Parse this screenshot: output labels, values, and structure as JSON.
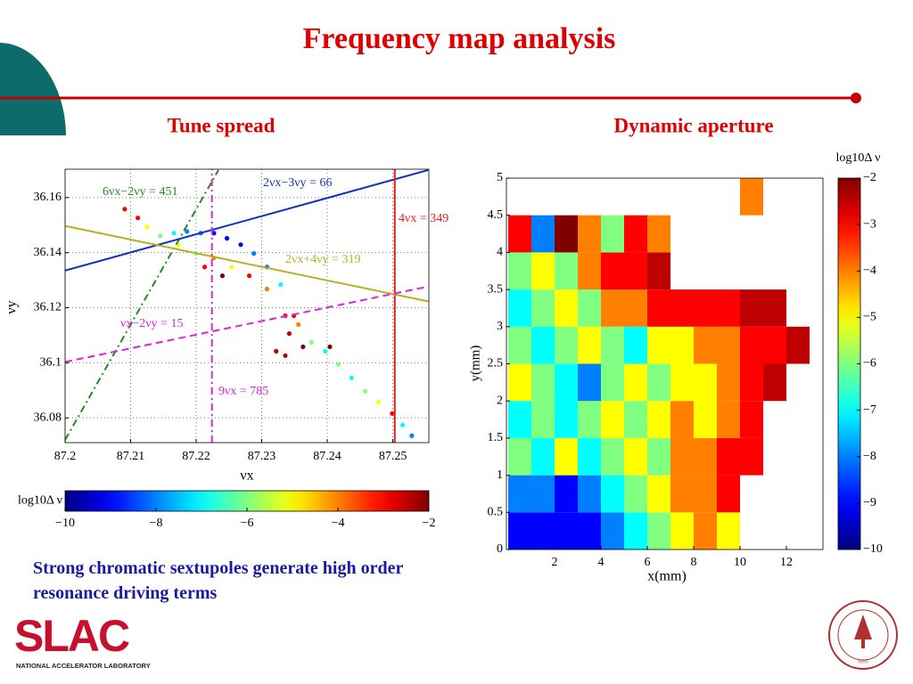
{
  "slide": {
    "title": "Frequency map analysis",
    "left_heading": "Tune spread",
    "right_heading": "Dynamic aperture",
    "caption": "Strong chromatic sextupoles generate high order resonance driving terms",
    "logo": "SLAC",
    "logo_subtitle": "NATIONAL ACCELERATOR LABORATORY",
    "seal_year": "1891"
  },
  "chart_data": [
    {
      "type": "scatter",
      "xlabel": "νx",
      "ylabel": "νy",
      "colormap": "jet",
      "grid": true,
      "xlim": [
        87.2,
        87.2555
      ],
      "ylim": [
        36.071,
        36.1703
      ],
      "xticks": [
        87.2,
        87.21,
        87.22,
        87.23,
        87.24,
        87.25
      ],
      "yticks": [
        36.08,
        36.1,
        36.12,
        36.14,
        36.16
      ],
      "x": [
        87.2091,
        87.2111,
        87.2125,
        87.2145,
        87.2166,
        87.2186,
        87.2207,
        87.2227,
        87.2247,
        87.2268,
        87.2288,
        87.2308,
        87.2329,
        87.2173,
        87.22,
        87.2227,
        87.2254,
        87.2281,
        87.2308,
        87.2213,
        87.224,
        87.2336,
        87.2349,
        87.2342,
        87.2336,
        87.2363,
        87.2356,
        87.2376,
        87.2397,
        87.2417,
        87.2437,
        87.2458,
        87.2478,
        87.2499,
        87.2515,
        87.2529,
        87.2404,
        87.2322
      ],
      "y": [
        36.1558,
        36.1526,
        36.1494,
        36.1461,
        36.1471,
        36.1477,
        36.1471,
        36.1471,
        36.1452,
        36.1429,
        36.1397,
        36.1348,
        36.1284,
        36.1429,
        36.1397,
        36.1381,
        36.1348,
        36.1316,
        36.1268,
        36.1348,
        36.1316,
        36.1171,
        36.1171,
        36.1106,
        36.1026,
        36.1058,
        36.1139,
        36.1074,
        36.1042,
        36.0994,
        36.0945,
        36.0897,
        36.0858,
        36.0816,
        36.0774,
        36.0735,
        36.1058,
        36.1042
      ],
      "color_values": [
        -3,
        -3,
        -5,
        -6,
        -7,
        -8,
        -8,
        -9,
        -9,
        -9,
        -8,
        -8,
        -7,
        -5,
        -6,
        -4,
        -5,
        -3,
        -4,
        -3,
        -2,
        -3,
        -3,
        -2.5,
        -2.5,
        -2,
        -4,
        -6,
        -7,
        -6,
        -7,
        -6,
        -5,
        -3,
        -7,
        -8,
        -2,
        -2.5
      ],
      "lines": [
        {
          "label": "6νx−2νy = 451",
          "x": [
            87.2,
            87.2234
          ],
          "y": [
            36.072,
            36.17
          ],
          "color": "#228b22",
          "dash": "dashdot"
        },
        {
          "label": "2νx−3νy = 66",
          "x": [
            87.2,
            87.2554
          ],
          "y": [
            36.1335,
            36.17
          ],
          "color": "#1030c0",
          "dash": "solid"
        },
        {
          "label": "4νx = 349",
          "x": [
            87.2503,
            87.2503
          ],
          "y": [
            36.071,
            36.1703
          ],
          "color": "#e02020",
          "dash": "solid"
        },
        {
          "label": "2νx+4νy = 319",
          "x": [
            87.2,
            87.2554
          ],
          "y": [
            36.1497,
            36.1223
          ],
          "color": "#b8b020",
          "dash": "solid"
        },
        {
          "label": "νx−2νy = 15",
          "x": [
            87.2,
            87.2554
          ],
          "y": [
            36.1003,
            36.1277
          ],
          "color": "#e020e0",
          "dash": "dashed"
        },
        {
          "label": "9νx = 785",
          "x": [
            87.2224,
            87.2224
          ],
          "y": [
            36.071,
            36.1703
          ],
          "color": "#e020e0",
          "dash": "dashdot"
        }
      ],
      "colorbar": {
        "label": "log10Δ ν",
        "lim": [
          -10,
          -2
        ],
        "orientation": "horizontal",
        "ticks": [
          {
            "value": -10,
            "label": "−10"
          },
          {
            "value": -8,
            "label": "−8"
          },
          {
            "value": -6,
            "label": "−6"
          },
          {
            "value": -4,
            "label": "−4"
          },
          {
            "value": -2,
            "label": "−2"
          }
        ]
      }
    },
    {
      "type": "heatmap",
      "xlabel": "x(mm)",
      "ylabel": "y(mm)",
      "colormap": "jet",
      "xlim": [
        0,
        13.6
      ],
      "ylim": [
        0,
        5
      ],
      "xticks": [
        2,
        4,
        6,
        8,
        10,
        12
      ],
      "yticks": [
        0,
        0.5,
        1,
        1.5,
        2,
        2.5,
        3,
        3.5,
        4,
        4.5,
        5
      ],
      "x_edges": [
        0,
        1,
        2,
        3,
        4,
        5,
        6,
        7,
        8,
        9,
        10,
        11,
        12,
        13
      ],
      "y_edges": [
        0,
        0.5,
        1,
        1.5,
        2,
        2.5,
        3,
        3.5,
        4,
        4.5,
        5
      ],
      "values": [
        [
          -9,
          -9,
          -9,
          -9,
          -8,
          -7,
          -6,
          -5,
          -4,
          -5,
          null,
          null,
          null
        ],
        [
          -8,
          -8,
          -9,
          -8,
          -7,
          -6,
          -5,
          -4,
          -4,
          -3,
          null,
          null,
          null
        ],
        [
          -6,
          -7,
          -5,
          -7,
          -6,
          -5,
          -6,
          -4,
          -4,
          -3,
          -3,
          null,
          null
        ],
        [
          -7,
          -6,
          -7,
          -6,
          -5,
          -6,
          -5,
          -4,
          -5,
          -4,
          -3,
          null,
          null
        ],
        [
          -5,
          -6,
          -7,
          -8,
          -6,
          -5,
          -6,
          -5,
          -5,
          -4,
          -3,
          -2.5,
          null
        ],
        [
          -6,
          -7,
          -6,
          -5,
          -6,
          -7,
          -5,
          -5,
          -4,
          -4,
          -3,
          -3,
          -2.5
        ],
        [
          -7,
          -6,
          -5,
          -6,
          -4,
          -4,
          -3,
          -3,
          -3,
          -3,
          -2.5,
          -2.5,
          null
        ],
        [
          -6,
          -5,
          -6,
          -4,
          -3,
          -3,
          -2.5,
          null,
          null,
          null,
          null,
          null,
          null
        ],
        [
          -3,
          -8,
          -2,
          -4,
          -6,
          -3,
          -4,
          null,
          null,
          null,
          null,
          null,
          null
        ],
        [
          null,
          null,
          null,
          null,
          null,
          null,
          null,
          null,
          null,
          null,
          -4,
          null,
          null
        ]
      ],
      "colorbar": {
        "label": "log10Δ ν",
        "lim": [
          -10,
          -2
        ],
        "orientation": "vertical",
        "ticks": [
          {
            "value": -2,
            "label": "−2"
          },
          {
            "value": -3,
            "label": "−3"
          },
          {
            "value": -4,
            "label": "−4"
          },
          {
            "value": -5,
            "label": "−5"
          },
          {
            "value": -6,
            "label": "−6"
          },
          {
            "value": -7,
            "label": "−7"
          },
          {
            "value": -8,
            "label": "−8"
          },
          {
            "value": -9,
            "label": "−9"
          },
          {
            "value": -10,
            "label": "−10"
          }
        ]
      }
    }
  ]
}
